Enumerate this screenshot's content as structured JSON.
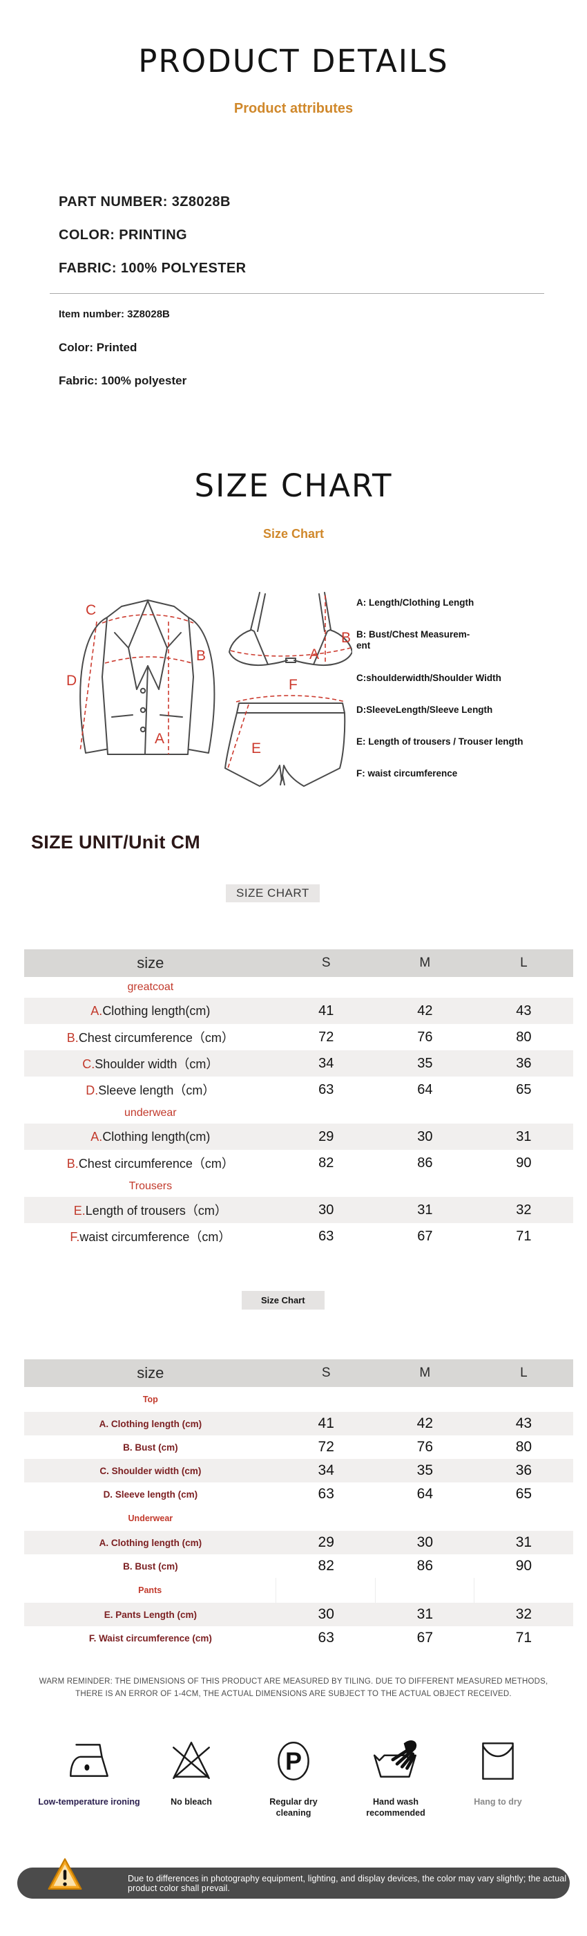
{
  "page": {
    "title": "PRODUCT DETAILS",
    "subtitle": "Product attributes"
  },
  "attributes": {
    "part_number": "PART NUMBER: 3Z8028B",
    "color_caps": "COLOR: PRINTING",
    "fabric_caps": "FABRIC: 100% POLYESTER",
    "item_number": "Item number: 3Z8028B",
    "color": "Color: Printed",
    "fabric": "Fabric: 100% polyester"
  },
  "size_chart": {
    "title": "SIZE CHART",
    "subtitle": "Size Chart",
    "legend": [
      "A: Length/Clothing Length",
      "B: Bust/Chest Measurem-\nent",
      "C:shoulderwidth/Shoulder Width",
      "D:SleeveLength/Sleeve Length",
      "E: Length of trousers / Trouser length",
      "F: waist circumference"
    ],
    "diagram": {
      "jacket_c": "C",
      "jacket_b": "B",
      "jacket_d": "D",
      "jacket_a": "A",
      "bra_b": "B",
      "bra_a": "A",
      "shorts_f": "F",
      "shorts_e": "E"
    }
  },
  "unit_heading": "SIZE UNIT/Unit CM",
  "table1": {
    "tag": "SIZE CHART",
    "header": [
      "size",
      "S",
      "M",
      "L"
    ],
    "rows": [
      {
        "type": "section",
        "label": "greatcoat"
      },
      {
        "type": "data",
        "prefix": "A.",
        "label": "Clothing length(cm)",
        "values": [
          "41",
          "42",
          "43"
        ]
      },
      {
        "type": "data",
        "prefix": "B.",
        "label": "Chest circumference（cm）",
        "values": [
          "72",
          "76",
          "80"
        ]
      },
      {
        "type": "data",
        "prefix": "C.",
        "label": "Shoulder width（cm）",
        "values": [
          "34",
          "35",
          "36"
        ]
      },
      {
        "type": "data",
        "prefix": "D.",
        "label": "Sleeve length（cm）",
        "values": [
          "63",
          "64",
          "65"
        ]
      },
      {
        "type": "section",
        "label": "underwear"
      },
      {
        "type": "data",
        "prefix": "A.",
        "label": "Clothing length(cm)",
        "values": [
          "29",
          "30",
          "31"
        ]
      },
      {
        "type": "data",
        "prefix": "B.",
        "label": "Chest circumference（cm）",
        "values": [
          "82",
          "86",
          "90"
        ]
      },
      {
        "type": "section",
        "label": "Trousers"
      },
      {
        "type": "data",
        "prefix": "E.",
        "label": "Length of trousers（cm）",
        "values": [
          "30",
          "31",
          "32"
        ]
      },
      {
        "type": "data",
        "prefix": "F.",
        "label": "waist circumference（cm）",
        "values": [
          "63",
          "67",
          "71"
        ]
      }
    ]
  },
  "table2": {
    "tag": "Size Chart",
    "header": [
      "size",
      "S",
      "M",
      "L"
    ],
    "rows": [
      {
        "type": "section",
        "label": "Top"
      },
      {
        "type": "data",
        "label": "A. Clothing length (cm)",
        "values": [
          "41",
          "42",
          "43"
        ]
      },
      {
        "type": "data",
        "label": "B. Bust (cm)",
        "values": [
          "72",
          "76",
          "80"
        ]
      },
      {
        "type": "data",
        "label": "C. Shoulder width (cm)",
        "values": [
          "34",
          "35",
          "36"
        ]
      },
      {
        "type": "data",
        "label": "D. Sleeve length (cm)",
        "values": [
          "63",
          "64",
          "65"
        ]
      },
      {
        "type": "section",
        "label": "Underwear"
      },
      {
        "type": "data",
        "label": "A. Clothing length (cm)",
        "values": [
          "29",
          "30",
          "31"
        ]
      },
      {
        "type": "data",
        "label": "B. Bust (cm)",
        "values": [
          "82",
          "86",
          "90"
        ]
      },
      {
        "type": "section",
        "label": "Pants",
        "dividers": true
      },
      {
        "type": "data",
        "label": "E. Pants Length (cm)",
        "values": [
          "30",
          "31",
          "32"
        ]
      },
      {
        "type": "data",
        "label": "F. Waist circumference (cm)",
        "values": [
          "63",
          "67",
          "71"
        ]
      }
    ]
  },
  "reminder": "WARM REMINDER: THE DIMENSIONS OF THIS PRODUCT ARE MEASURED BY TILING. DUE TO DIFFERENT MEASURED METHODS,\nTHERE IS AN ERROR OF 1-4CM, THE ACTUAL DIMENSIONS ARE SUBJECT TO THE ACTUAL OBJECT RECEIVED.",
  "care": {
    "dry_clean_letter": "P",
    "items": [
      {
        "icon": "iron-icon",
        "label": "Low-temperature ironing"
      },
      {
        "icon": "no-bleach-icon",
        "label": "No bleach"
      },
      {
        "icon": "dry-clean-icon",
        "label": "Regular dry\ncleaning"
      },
      {
        "icon": "hand-wash-icon",
        "label": "Hand wash\nrecommended"
      },
      {
        "icon": "hang-dry-icon",
        "label": "Hang to dry"
      }
    ]
  },
  "notice": "Due to differences in photography equipment, lighting, and display devices, the color may vary slightly; the actual product color shall prevail.",
  "colors": {
    "accent_orange": "#d0882b",
    "accent_red": "#c23a2c",
    "label_maroon": "#7c2022",
    "table_header_gray": "#d8d7d5",
    "row_shade_gray": "#f1efee",
    "notice_bar_gray": "#4b4b4b"
  }
}
